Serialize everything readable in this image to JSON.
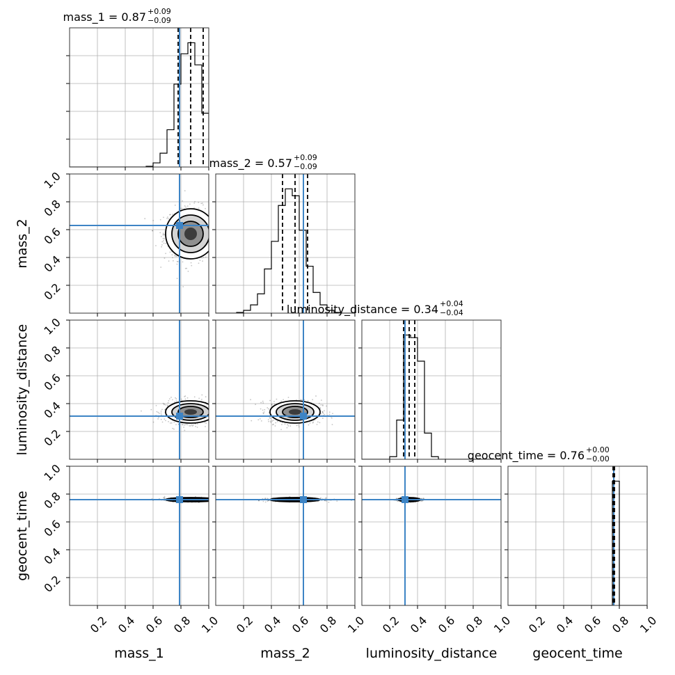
{
  "chart_data": {
    "type": "corner",
    "parameters": [
      "mass_1",
      "mass_2",
      "luminosity_distance",
      "geocent_time"
    ],
    "axis_range": [
      0,
      1
    ],
    "tick_values": [
      0.2,
      0.4,
      0.6,
      0.8,
      1.0
    ],
    "tick_labels": [
      "0.2",
      "0.4",
      "0.6",
      "0.8",
      "1.0"
    ],
    "grid": true,
    "colors": {
      "truth": "#3d84c5",
      "hist": "#000000",
      "grid": "#b0b0b0"
    },
    "truths": {
      "mass_1": 0.79,
      "mass_2": 0.63,
      "luminosity_distance": 0.31,
      "geocent_time": 0.76
    },
    "titles": [
      {
        "param": "mass_1",
        "text": "mass_1 = 0.87",
        "plus": "+0.09",
        "minus": "−0.09"
      },
      {
        "param": "mass_2",
        "text": "mass_2 = 0.57",
        "plus": "+0.09",
        "minus": "−0.09"
      },
      {
        "param": "luminosity_distance",
        "text": "luminosity_distance = 0.34",
        "plus": "+0.04",
        "minus": "−0.04"
      },
      {
        "param": "geocent_time",
        "text": "geocent_time = 0.76",
        "plus": "+0.00",
        "minus": "−0.00"
      }
    ],
    "quantiles": {
      "mass_1": [
        0.78,
        0.87,
        0.96
      ],
      "mass_2": [
        0.48,
        0.57,
        0.66
      ],
      "luminosity_distance": [
        0.3,
        0.34,
        0.38
      ],
      "geocent_time": [
        0.755,
        0.76,
        0.765
      ]
    },
    "histograms": {
      "mass_1": {
        "bin_edges": [
          0.55,
          0.6,
          0.65,
          0.7,
          0.75,
          0.8,
          0.85,
          0.9,
          0.95,
          1.0
        ],
        "counts": [
          0.005,
          0.03,
          0.1,
          0.27,
          0.6,
          0.82,
          0.9,
          0.74,
          0.39
        ]
      },
      "mass_2": {
        "bin_edges": [
          0.15,
          0.2,
          0.25,
          0.3,
          0.35,
          0.4,
          0.45,
          0.5,
          0.55,
          0.6,
          0.65,
          0.7,
          0.75,
          0.8,
          0.85,
          0.9
        ],
        "counts": [
          0.005,
          0.02,
          0.06,
          0.14,
          0.32,
          0.52,
          0.78,
          0.9,
          0.85,
          0.6,
          0.34,
          0.15,
          0.06,
          0.02,
          0.005
        ]
      },
      "luminosity_distance": {
        "bin_edges": [
          0.1,
          0.15,
          0.2,
          0.25,
          0.3,
          0.35,
          0.4,
          0.45,
          0.5,
          0.55
        ],
        "counts": [
          0.0,
          0.0,
          0.02,
          0.3,
          0.95,
          0.93,
          0.75,
          0.2,
          0.02
        ]
      },
      "geocent_time": {
        "bin_edges": [
          0.7,
          0.75,
          0.8,
          0.85
        ],
        "counts": [
          0.0,
          0.9,
          0.0
        ]
      }
    },
    "contours": {
      "mass_2|mass_1": {
        "cx": 0.87,
        "cy": 0.57,
        "sx": 0.09,
        "sy": 0.09
      },
      "luminosity_distance|mass_1": {
        "cx": 0.87,
        "cy": 0.34,
        "sx": 0.09,
        "sy": 0.04
      },
      "luminosity_distance|mass_2": {
        "cx": 0.57,
        "cy": 0.34,
        "sx": 0.09,
        "sy": 0.04
      },
      "geocent_time|mass_1": {
        "cx": 0.87,
        "cy": 0.76,
        "sx": 0.09,
        "sy": 0.006
      },
      "geocent_time|mass_2": {
        "cx": 0.57,
        "cy": 0.76,
        "sx": 0.09,
        "sy": 0.006
      },
      "geocent_time|luminosity_distance": {
        "cx": 0.34,
        "cy": 0.76,
        "sx": 0.04,
        "sy": 0.006
      }
    },
    "contour_levels_sigma": [
      0.5,
      1.0,
      1.5,
      2.0
    ]
  }
}
